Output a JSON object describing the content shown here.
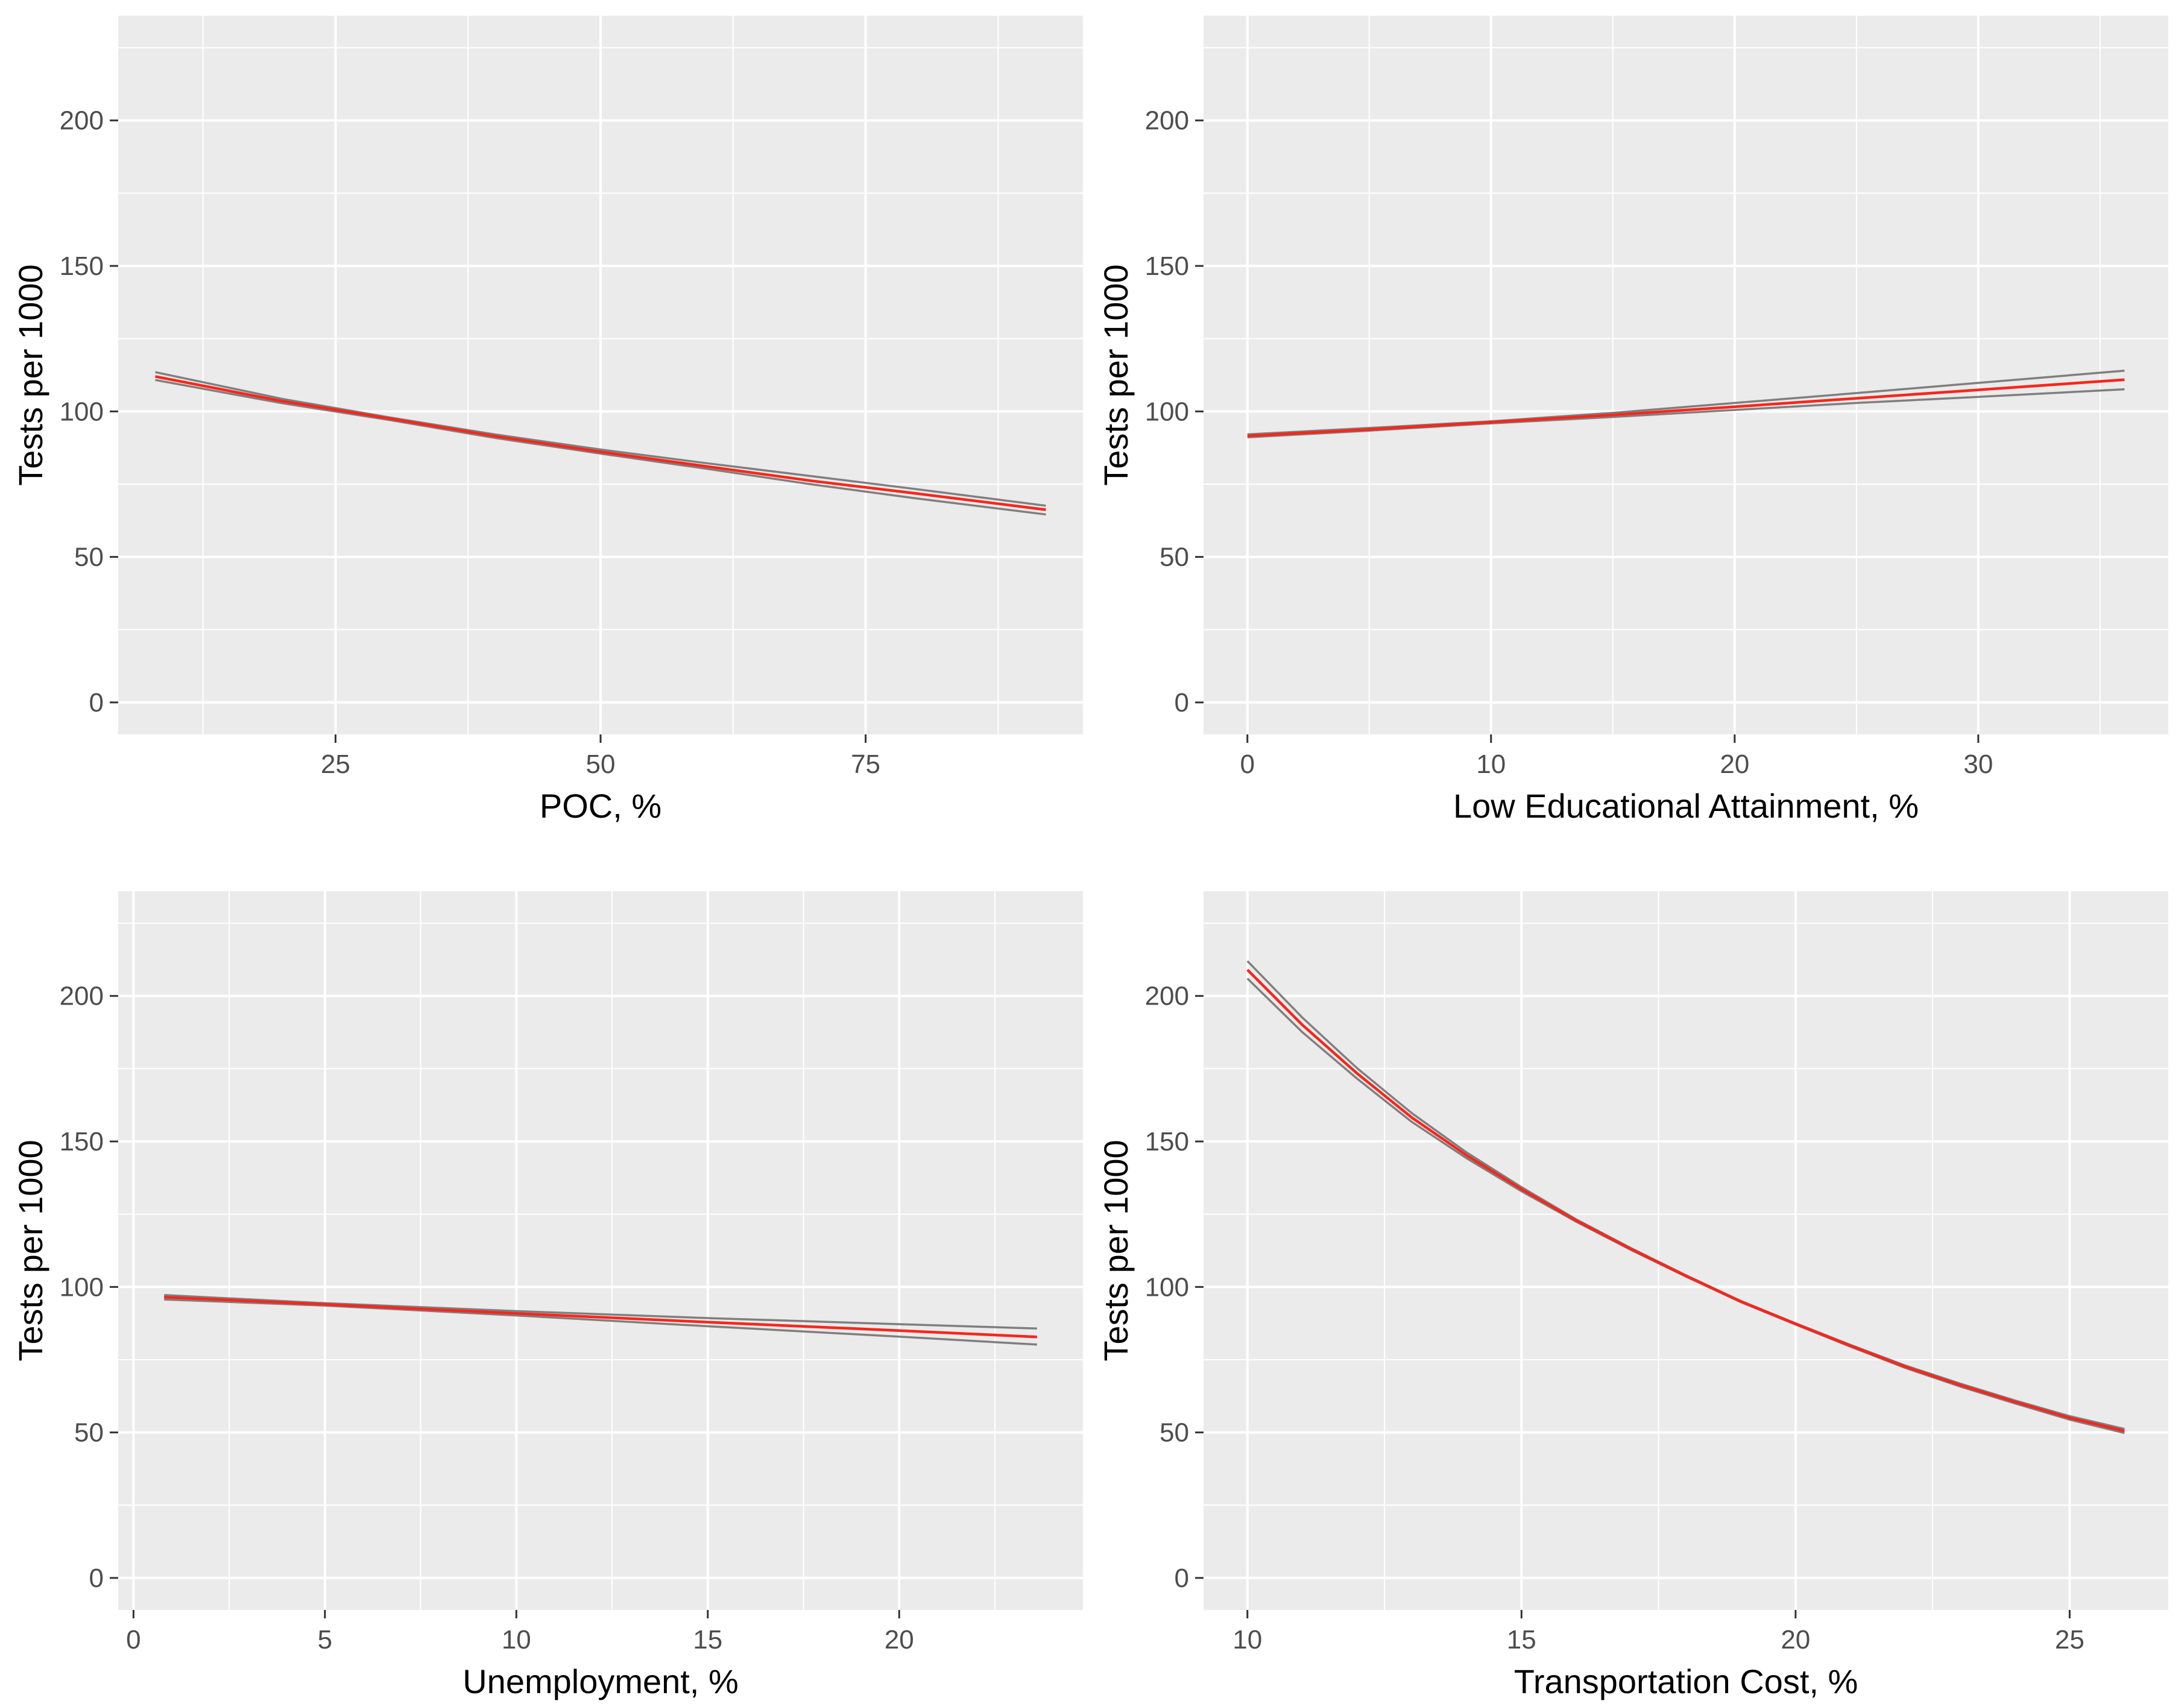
{
  "colors": {
    "panel_background": "#EBEBEB",
    "grid_major": "#FFFFFF",
    "fit_line": "#F8261B",
    "ci_line": "#7F7F7F",
    "tick_label": "#4D4D4D",
    "axis_title": "#000000"
  },
  "chart_data": [
    {
      "type": "line",
      "xlabel": "POC, %",
      "ylabel": "Tests per 1000",
      "xlim": [
        4.5,
        95.5
      ],
      "ylim": [
        -11,
        236
      ],
      "xticks": [
        25,
        50,
        75
      ],
      "yticks": [
        0,
        50,
        100,
        150,
        200
      ],
      "series": [
        {
          "name": "fit",
          "x": [
            8,
            20,
            30,
            40,
            50,
            60,
            70,
            80,
            92
          ],
          "y": [
            112,
            103.5,
            97.6,
            91.5,
            86.1,
            81.1,
            76.1,
            71.7,
            66.2
          ]
        },
        {
          "name": "ci_upper",
          "x": [
            8,
            20,
            30,
            40,
            50,
            60,
            70,
            80,
            92
          ],
          "y": [
            113.5,
            104.3,
            98.0,
            92.1,
            86.9,
            82.2,
            77.7,
            73.2,
            67.6
          ]
        },
        {
          "name": "ci_lower",
          "x": [
            8,
            20,
            30,
            40,
            50,
            60,
            70,
            80,
            92
          ],
          "y": [
            110.8,
            102.8,
            97.1,
            90.9,
            85.5,
            80.3,
            74.9,
            70.0,
            64.6
          ]
        }
      ]
    },
    {
      "type": "line",
      "xlabel": "Low Educational Attainment, %",
      "ylabel": "Tests per 1000",
      "xlim": [
        -1.8,
        37.8
      ],
      "ylim": [
        -11,
        236
      ],
      "xticks": [
        0,
        10,
        20,
        30
      ],
      "yticks": [
        0,
        50,
        100,
        150,
        200
      ],
      "series": [
        {
          "name": "fit",
          "x": [
            0,
            5,
            10,
            15,
            20,
            25,
            30,
            36
          ],
          "y": [
            91.6,
            93.8,
            96.3,
            98.8,
            101.6,
            104.5,
            107.4,
            110.9
          ]
        },
        {
          "name": "ci_upper",
          "x": [
            0,
            5,
            10,
            15,
            20,
            25,
            30,
            36
          ],
          "y": [
            92.1,
            94.3,
            96.6,
            99.5,
            102.9,
            106.3,
            109.8,
            114.0
          ]
        },
        {
          "name": "ci_lower",
          "x": [
            0,
            5,
            10,
            15,
            20,
            25,
            30,
            36
          ],
          "y": [
            91.1,
            93.4,
            95.9,
            98.1,
            100.5,
            102.9,
            105.0,
            107.6
          ]
        }
      ]
    },
    {
      "type": "line",
      "xlabel": "Unemployment, %",
      "ylabel": "Tests per 1000",
      "xlim": [
        -0.4,
        24.8
      ],
      "ylim": [
        -11,
        236
      ],
      "xticks": [
        0,
        5,
        10,
        15,
        20
      ],
      "yticks": [
        0,
        50,
        100,
        150,
        200
      ],
      "series": [
        {
          "name": "fit",
          "x": [
            0.8,
            5,
            10,
            15,
            20,
            23.6
          ],
          "y": [
            96.5,
            94.0,
            90.9,
            87.9,
            85.0,
            82.8
          ]
        },
        {
          "name": "ci_upper",
          "x": [
            0.8,
            5,
            10,
            15,
            20,
            23.6
          ],
          "y": [
            97.2,
            94.4,
            91.7,
            89.3,
            87.2,
            85.7
          ]
        },
        {
          "name": "ci_lower",
          "x": [
            0.8,
            5,
            10,
            15,
            20,
            23.6
          ],
          "y": [
            95.7,
            93.6,
            90.2,
            86.5,
            82.9,
            80.2
          ]
        }
      ]
    },
    {
      "type": "line",
      "xlabel": "Transportation Cost, %",
      "ylabel": "Tests per 1000",
      "xlim": [
        9.2,
        26.8
      ],
      "ylim": [
        -11,
        236
      ],
      "xticks": [
        10,
        15,
        20,
        25
      ],
      "yticks": [
        0,
        50,
        100,
        150,
        200
      ],
      "series": [
        {
          "name": "fit",
          "x": [
            10,
            11,
            12,
            13,
            14,
            15,
            16,
            17,
            18,
            19,
            20,
            21,
            22,
            23,
            24,
            25,
            26
          ],
          "y": [
            209,
            190.1,
            173.4,
            158.2,
            145.2,
            133.6,
            122.8,
            113.0,
            103.8,
            95.0,
            87.3,
            79.8,
            72.6,
            66.3,
            60.5,
            55.0,
            50.5
          ]
        },
        {
          "name": "ci_upper",
          "x": [
            10,
            11,
            12,
            13,
            14,
            15,
            16,
            17,
            18,
            19,
            20,
            21,
            22,
            23,
            24,
            25,
            26
          ],
          "y": [
            212,
            192.6,
            175.2,
            159.7,
            146.2,
            134.3,
            123.2,
            113.3,
            104.0,
            95.2,
            87.5,
            80.1,
            73.0,
            66.8,
            61.0,
            55.6,
            51.2
          ]
        },
        {
          "name": "ci_lower",
          "x": [
            10,
            11,
            12,
            13,
            14,
            15,
            16,
            17,
            18,
            19,
            20,
            21,
            22,
            23,
            24,
            25,
            26
          ],
          "y": [
            206,
            187.6,
            171.6,
            156.7,
            144.2,
            132.9,
            122.4,
            112.7,
            103.6,
            94.8,
            87.1,
            79.5,
            72.2,
            65.8,
            60.0,
            54.4,
            49.8
          ]
        }
      ]
    }
  ]
}
